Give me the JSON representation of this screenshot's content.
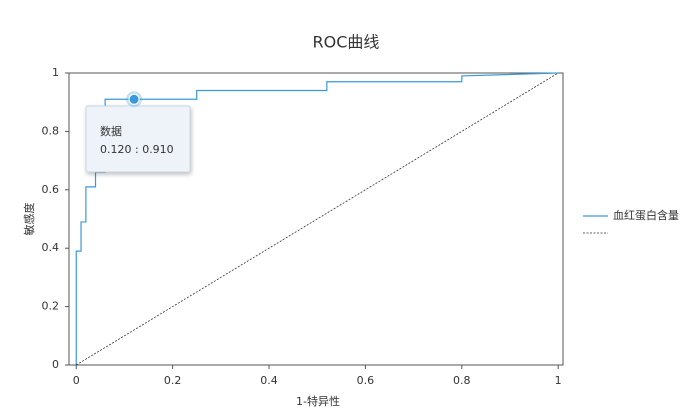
{
  "chart_data": {
    "type": "line",
    "title": "ROC曲线",
    "x_label": "1-特异性",
    "y_label": "敏感度",
    "xlim": [
      -0.015,
      1.01
    ],
    "ylim": [
      0,
      1
    ],
    "xticks": [
      0,
      0.2,
      0.4,
      0.6,
      0.8,
      1
    ],
    "yticks": [
      0,
      0.2,
      0.4,
      0.6,
      0.8,
      1
    ],
    "grid": false,
    "legend": "right",
    "series": [
      {
        "name": "血红蛋白含量",
        "color": "#3a9ad9",
        "style": "solid",
        "x": [
          0,
          0,
          0.01,
          0.01,
          0.02,
          0.02,
          0.04,
          0.04,
          0.06,
          0.06,
          0.12,
          0.25,
          0.25,
          0.52,
          0.52,
          0.8,
          0.8,
          1
        ],
        "values": [
          0,
          0.39,
          0.39,
          0.49,
          0.49,
          0.61,
          0.61,
          0.66,
          0.66,
          0.91,
          0.91,
          0.91,
          0.94,
          0.94,
          0.97,
          0.97,
          0.99,
          1
        ]
      },
      {
        "color": "#333333",
        "style": "dashed",
        "x": [
          0,
          1
        ],
        "values": [
          0,
          1
        ]
      }
    ],
    "tooltip": {
      "series": 0,
      "index": 10,
      "title": "数据",
      "text": "0.120 : 0.910"
    }
  }
}
